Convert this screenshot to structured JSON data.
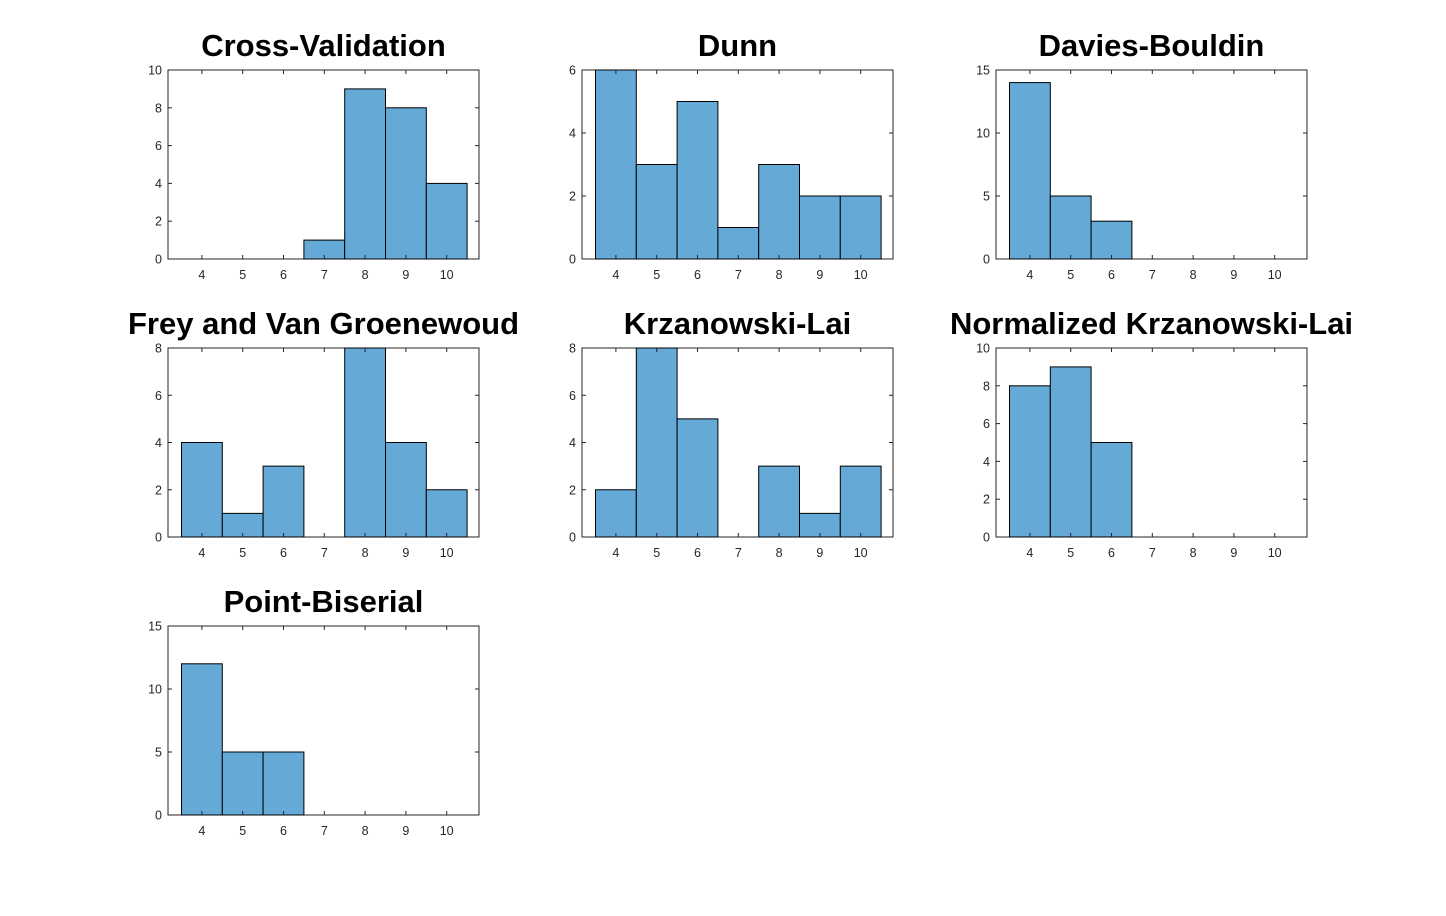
{
  "colors": {
    "bar_fill": "#65a9d7",
    "bar_edge": "#000000",
    "axis": "#262626",
    "background": "#ffffff"
  },
  "chart_data": [
    {
      "type": "bar",
      "title": "Cross-Validation",
      "categories": [
        "4",
        "5",
        "6",
        "7",
        "8",
        "9",
        "10"
      ],
      "values": [
        0,
        0,
        0,
        1,
        9,
        8,
        4
      ],
      "xlabel": "",
      "ylabel": "",
      "ylim": [
        0,
        10
      ],
      "yticks": [
        0,
        2,
        4,
        6,
        8,
        10
      ],
      "grid": false
    },
    {
      "type": "bar",
      "title": "Dunn",
      "categories": [
        "4",
        "5",
        "6",
        "7",
        "8",
        "9",
        "10"
      ],
      "values": [
        6,
        3,
        5,
        1,
        3,
        2,
        2
      ],
      "xlabel": "",
      "ylabel": "",
      "ylim": [
        0,
        6
      ],
      "yticks": [
        0,
        2,
        4,
        6
      ],
      "grid": false
    },
    {
      "type": "bar",
      "title": "Davies-Bouldin",
      "categories": [
        "4",
        "5",
        "6",
        "7",
        "8",
        "9",
        "10"
      ],
      "values": [
        14,
        5,
        3,
        0,
        0,
        0,
        0
      ],
      "xlabel": "",
      "ylabel": "",
      "ylim": [
        0,
        15
      ],
      "yticks": [
        0,
        5,
        10,
        15
      ],
      "grid": false
    },
    {
      "type": "bar",
      "title": "Frey and Van Groenewoud",
      "categories": [
        "4",
        "5",
        "6",
        "7",
        "8",
        "9",
        "10"
      ],
      "values": [
        4,
        1,
        3,
        0,
        8,
        4,
        2
      ],
      "xlabel": "",
      "ylabel": "",
      "ylim": [
        0,
        8
      ],
      "yticks": [
        0,
        2,
        4,
        6,
        8
      ],
      "grid": false
    },
    {
      "type": "bar",
      "title": "Krzanowski-Lai",
      "categories": [
        "4",
        "5",
        "6",
        "7",
        "8",
        "9",
        "10"
      ],
      "values": [
        2,
        8,
        5,
        0,
        3,
        1,
        3
      ],
      "xlabel": "",
      "ylabel": "",
      "ylim": [
        0,
        8
      ],
      "yticks": [
        0,
        2,
        4,
        6,
        8
      ],
      "grid": false
    },
    {
      "type": "bar",
      "title": "Normalized Krzanowski-Lai",
      "categories": [
        "4",
        "5",
        "6",
        "7",
        "8",
        "9",
        "10"
      ],
      "values": [
        8,
        9,
        5,
        0,
        0,
        0,
        0
      ],
      "xlabel": "",
      "ylabel": "",
      "ylim": [
        0,
        10
      ],
      "yticks": [
        0,
        2,
        4,
        6,
        8,
        10
      ],
      "grid": false
    },
    {
      "type": "bar",
      "title": "Point-Biserial",
      "categories": [
        "4",
        "5",
        "6",
        "7",
        "8",
        "9",
        "10"
      ],
      "values": [
        12,
        5,
        5,
        0,
        0,
        0,
        0
      ],
      "xlabel": "",
      "ylabel": "",
      "ylim": [
        0,
        15
      ],
      "yticks": [
        0,
        5,
        10,
        15
      ],
      "grid": false
    }
  ]
}
